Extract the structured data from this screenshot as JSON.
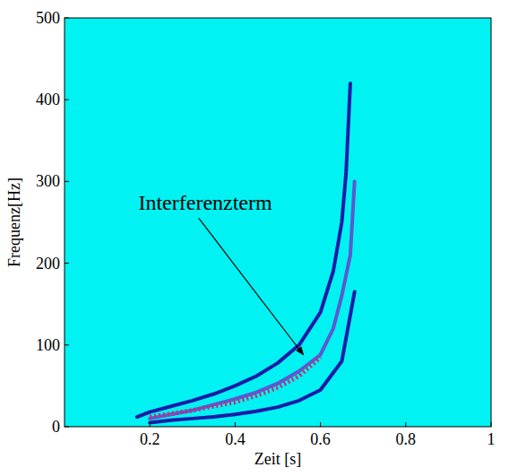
{
  "chart_data": {
    "type": "line",
    "x_label": "Zeit [s]",
    "y_label": "Frequenz[Hz]",
    "xlim": [
      0,
      1
    ],
    "ylim": [
      0,
      500
    ],
    "xticks": [
      0.2,
      0.4,
      0.6,
      0.8,
      1
    ],
    "yticks": [
      0,
      100,
      200,
      300,
      400,
      500
    ],
    "grid": false,
    "series": [
      {
        "color": "#1c1ca8",
        "line_style": "solid",
        "x": [
          0.17,
          0.2,
          0.25,
          0.3,
          0.35,
          0.4,
          0.45,
          0.5,
          0.55,
          0.6,
          0.63,
          0.65,
          0.66,
          0.67
        ],
        "values": [
          12,
          18,
          25,
          32,
          40,
          50,
          62,
          78,
          100,
          140,
          190,
          250,
          310,
          420
        ]
      },
      {
        "color": "#5a5ad0",
        "line_style": "solid",
        "x": [
          0.2,
          0.25,
          0.3,
          0.35,
          0.4,
          0.45,
          0.5,
          0.55,
          0.6,
          0.63,
          0.65,
          0.67,
          0.68
        ],
        "values": [
          10,
          15,
          20,
          27,
          34,
          42,
          53,
          68,
          88,
          120,
          160,
          210,
          300
        ]
      },
      {
        "color": "#c0307a",
        "line_style": "dotted",
        "x": [
          0.2,
          0.25,
          0.3,
          0.35,
          0.4,
          0.45,
          0.5,
          0.55,
          0.6
        ],
        "values": [
          12,
          16,
          20,
          25,
          30,
          38,
          48,
          62,
          85
        ]
      },
      {
        "color": "#1c1ca8",
        "line_style": "solid",
        "x": [
          0.2,
          0.25,
          0.3,
          0.35,
          0.4,
          0.45,
          0.5,
          0.55,
          0.6,
          0.65,
          0.68
        ],
        "values": [
          5,
          8,
          10,
          12,
          15,
          19,
          24,
          32,
          45,
          80,
          165
        ]
      }
    ],
    "annotations": [
      {
        "text": "Interferenzterm",
        "x": 0.33,
        "y": 265,
        "target_x": 0.56,
        "target_y": 88
      }
    ]
  }
}
